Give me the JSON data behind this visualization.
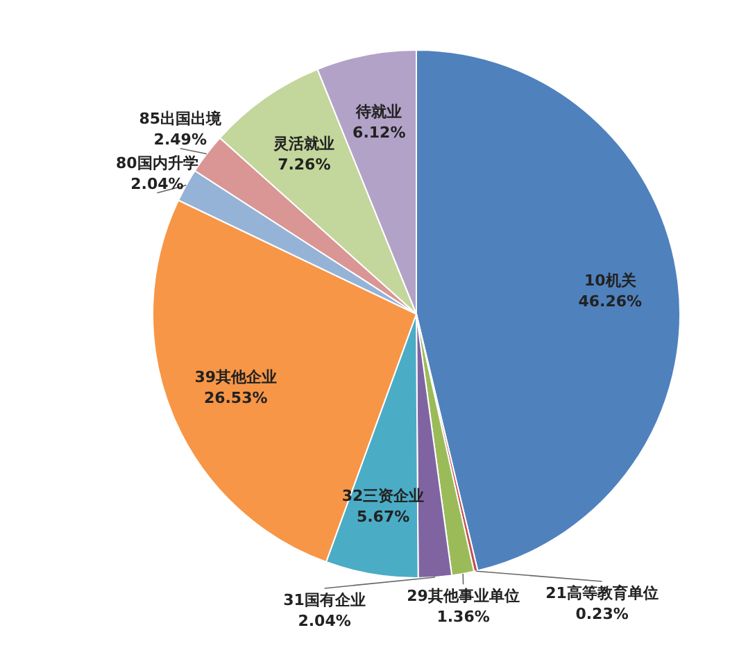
{
  "chart_data": {
    "type": "pie",
    "categories": [
      "10机关",
      "21高等教育单位",
      "29其他事业单位",
      "31国有企业",
      "32三资企业",
      "39其他企业",
      "80国内升学",
      "85出国出境",
      "灵活就业",
      "待就业"
    ],
    "values": [
      46.26,
      0.23,
      1.36,
      2.04,
      5.67,
      26.53,
      2.04,
      2.49,
      7.26,
      6.12
    ],
    "value_labels": [
      "46.26%",
      "0.23%",
      "1.36%",
      "2.04%",
      "5.67%",
      "26.53%",
      "2.04%",
      "2.49%",
      "7.26%",
      "6.12%"
    ],
    "colors": [
      "#4f81bd",
      "#c0504d",
      "#9bbb59",
      "#8064a2",
      "#4bacc6",
      "#f79646",
      "#95b3d7",
      "#d99694",
      "#c3d69b",
      "#b3a2c7"
    ]
  }
}
